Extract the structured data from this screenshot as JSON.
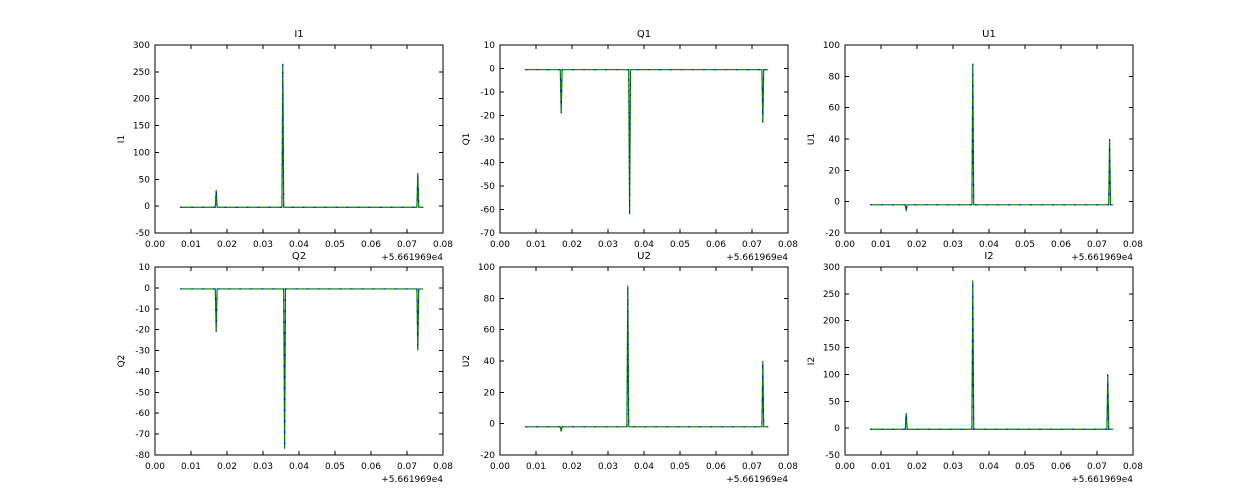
{
  "figure": {
    "background": "#ffffff",
    "offset_label": "+5.661969e4"
  },
  "chart_data": [
    {
      "type": "line",
      "title": "I1",
      "ylabel": "I1",
      "xlim": [
        0.0,
        0.08
      ],
      "ylim": [
        -50,
        300
      ],
      "xticks": [
        0.0,
        0.01,
        0.02,
        0.03,
        0.04,
        0.05,
        0.06,
        0.07,
        0.08
      ],
      "xtick_labels": [
        "0.00",
        "0.01",
        "0.02",
        "0.03",
        "0.04",
        "0.05",
        "0.06",
        "0.07",
        "0.08"
      ],
      "yticks": [
        -50,
        0,
        50,
        100,
        150,
        200,
        250,
        300
      ],
      "ytick_labels": [
        "-50",
        "0",
        "50",
        "100",
        "150",
        "200",
        "250",
        "300"
      ],
      "x_offset": "+5.661969e4",
      "x_start": 0.007,
      "x_end": 0.0745,
      "baseline": -2,
      "spikes": [
        {
          "x": 0.017,
          "y": 30
        },
        {
          "x": 0.0355,
          "y": 265
        },
        {
          "x": 0.073,
          "y": 62
        }
      ],
      "series": [
        {
          "name": "trace-blue",
          "color": "#0000ff"
        },
        {
          "name": "trace-green",
          "color": "#008000"
        }
      ]
    },
    {
      "type": "line",
      "title": "Q1",
      "ylabel": "Q1",
      "xlim": [
        0.0,
        0.08
      ],
      "ylim": [
        -70,
        10
      ],
      "xticks": [
        0.0,
        0.01,
        0.02,
        0.03,
        0.04,
        0.05,
        0.06,
        0.07,
        0.08
      ],
      "xtick_labels": [
        "0.00",
        "0.01",
        "0.02",
        "0.03",
        "0.04",
        "0.05",
        "0.06",
        "0.07",
        "0.08"
      ],
      "yticks": [
        -70,
        -60,
        -50,
        -40,
        -30,
        -20,
        -10,
        0,
        10
      ],
      "ytick_labels": [
        "-70",
        "-60",
        "-50",
        "-40",
        "-30",
        "-20",
        "-10",
        "0",
        "10"
      ],
      "x_offset": "+5.661969e4",
      "x_start": 0.007,
      "x_end": 0.0745,
      "baseline": -0.5,
      "spikes": [
        {
          "x": 0.017,
          "y": -19
        },
        {
          "x": 0.036,
          "y": -62
        },
        {
          "x": 0.073,
          "y": -23
        }
      ],
      "series": [
        {
          "name": "trace-blue",
          "color": "#0000ff"
        },
        {
          "name": "trace-green",
          "color": "#008000"
        }
      ]
    },
    {
      "type": "line",
      "title": "U1",
      "ylabel": "U1",
      "xlim": [
        0.0,
        0.08
      ],
      "ylim": [
        -20,
        100
      ],
      "xticks": [
        0.0,
        0.01,
        0.02,
        0.03,
        0.04,
        0.05,
        0.06,
        0.07,
        0.08
      ],
      "xtick_labels": [
        "0.00",
        "0.01",
        "0.02",
        "0.03",
        "0.04",
        "0.05",
        "0.06",
        "0.07",
        "0.08"
      ],
      "yticks": [
        -20,
        0,
        20,
        40,
        60,
        80,
        100
      ],
      "ytick_labels": [
        "-20",
        "0",
        "20",
        "40",
        "60",
        "80",
        "100"
      ],
      "x_offset": "+5.661969e4",
      "x_start": 0.007,
      "x_end": 0.0745,
      "baseline": -2,
      "spikes": [
        {
          "x": 0.017,
          "y": -6
        },
        {
          "x": 0.0355,
          "y": 88
        },
        {
          "x": 0.0735,
          "y": 40
        }
      ],
      "series": [
        {
          "name": "trace-blue",
          "color": "#0000ff"
        },
        {
          "name": "trace-green",
          "color": "#008000"
        }
      ]
    },
    {
      "type": "line",
      "title": "Q2",
      "ylabel": "Q2",
      "xlim": [
        0.0,
        0.08
      ],
      "ylim": [
        -80,
        10
      ],
      "xticks": [
        0.0,
        0.01,
        0.02,
        0.03,
        0.04,
        0.05,
        0.06,
        0.07,
        0.08
      ],
      "xtick_labels": [
        "0.00",
        "0.01",
        "0.02",
        "0.03",
        "0.04",
        "0.05",
        "0.06",
        "0.07",
        "0.08"
      ],
      "yticks": [
        -80,
        -70,
        -60,
        -50,
        -40,
        -30,
        -20,
        -10,
        0,
        10
      ],
      "ytick_labels": [
        "-80",
        "-70",
        "-60",
        "-50",
        "-40",
        "-30",
        "-20",
        "-10",
        "0",
        "10"
      ],
      "x_offset": "+5.661969e4",
      "x_start": 0.007,
      "x_end": 0.0745,
      "baseline": -0.5,
      "spikes": [
        {
          "x": 0.017,
          "y": -21
        },
        {
          "x": 0.036,
          "y": -77
        },
        {
          "x": 0.073,
          "y": -30
        }
      ],
      "series": [
        {
          "name": "trace-blue",
          "color": "#0000ff"
        },
        {
          "name": "trace-green",
          "color": "#008000"
        }
      ]
    },
    {
      "type": "line",
      "title": "U2",
      "ylabel": "U2",
      "xlim": [
        0.0,
        0.08
      ],
      "ylim": [
        -20,
        100
      ],
      "xticks": [
        0.0,
        0.01,
        0.02,
        0.03,
        0.04,
        0.05,
        0.06,
        0.07,
        0.08
      ],
      "xtick_labels": [
        "0.00",
        "0.01",
        "0.02",
        "0.03",
        "0.04",
        "0.05",
        "0.06",
        "0.07",
        "0.08"
      ],
      "yticks": [
        -20,
        0,
        20,
        40,
        60,
        80,
        100
      ],
      "ytick_labels": [
        "-20",
        "0",
        "20",
        "40",
        "60",
        "80",
        "100"
      ],
      "x_offset": "+5.661969e4",
      "x_start": 0.007,
      "x_end": 0.0745,
      "baseline": -2,
      "spikes": [
        {
          "x": 0.017,
          "y": -5
        },
        {
          "x": 0.0355,
          "y": 88
        },
        {
          "x": 0.073,
          "y": 40
        }
      ],
      "series": [
        {
          "name": "trace-blue",
          "color": "#0000ff"
        },
        {
          "name": "trace-green",
          "color": "#008000"
        }
      ]
    },
    {
      "type": "line",
      "title": "I2",
      "ylabel": "I2",
      "xlim": [
        0.0,
        0.08
      ],
      "ylim": [
        -50,
        300
      ],
      "xticks": [
        0.0,
        0.01,
        0.02,
        0.03,
        0.04,
        0.05,
        0.06,
        0.07,
        0.08
      ],
      "xtick_labels": [
        "0.00",
        "0.01",
        "0.02",
        "0.03",
        "0.04",
        "0.05",
        "0.06",
        "0.07",
        "0.08"
      ],
      "yticks": [
        -50,
        0,
        50,
        100,
        150,
        200,
        250,
        300
      ],
      "ytick_labels": [
        "-50",
        "0",
        "50",
        "100",
        "150",
        "200",
        "250",
        "300"
      ],
      "x_offset": "+5.661969e4",
      "x_start": 0.007,
      "x_end": 0.0745,
      "baseline": -2,
      "spikes": [
        {
          "x": 0.017,
          "y": 28
        },
        {
          "x": 0.0355,
          "y": 275
        },
        {
          "x": 0.073,
          "y": 100
        }
      ],
      "series": [
        {
          "name": "trace-blue",
          "color": "#0000ff"
        },
        {
          "name": "trace-green",
          "color": "#008000"
        }
      ]
    }
  ]
}
